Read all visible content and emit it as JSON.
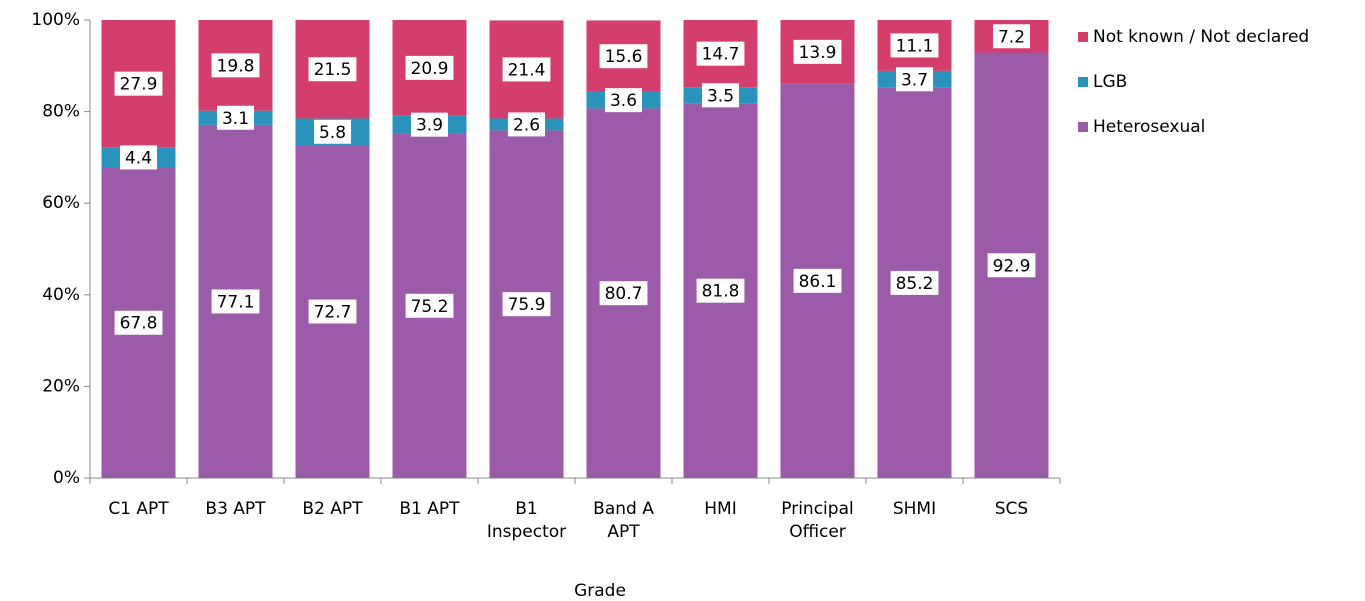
{
  "chart_data": {
    "type": "stacked_bar",
    "x_label": "Grade",
    "categories": [
      "C1 APT",
      "B3 APT",
      "B2 APT",
      "B1 APT",
      "B1 Inspector",
      "Band A APT",
      "HMI",
      "Principal Officer",
      "SHMI",
      "SCS"
    ],
    "series": [
      {
        "name": "Heterosexual",
        "color": "#9b5ba8",
        "label_color": "#6a5b95",
        "values": [
          67.8,
          77.1,
          72.7,
          75.2,
          75.9,
          80.7,
          81.8,
          86.1,
          85.2,
          92.9
        ]
      },
      {
        "name": "LGB",
        "color": "#2a93bb",
        "label_color": "#1f6fc0",
        "values": [
          4.4,
          3.1,
          5.8,
          3.9,
          2.6,
          3.6,
          3.5,
          null,
          3.7,
          null
        ]
      },
      {
        "name": "Not known / Not declared",
        "color": "#d43e6c",
        "label_color": "#a8325f",
        "values": [
          27.9,
          19.8,
          21.5,
          20.9,
          21.4,
          15.6,
          14.7,
          13.9,
          11.1,
          7.2
        ]
      }
    ],
    "ylim": [
      0,
      100
    ],
    "yticks": [
      {
        "value": 0,
        "label": "0%"
      },
      {
        "value": 20,
        "label": "20%"
      },
      {
        "value": 40,
        "label": "40%"
      },
      {
        "value": 60,
        "label": "60%"
      },
      {
        "value": 80,
        "label": "80%"
      },
      {
        "value": 100,
        "label": "100%"
      }
    ],
    "legend": "right"
  }
}
